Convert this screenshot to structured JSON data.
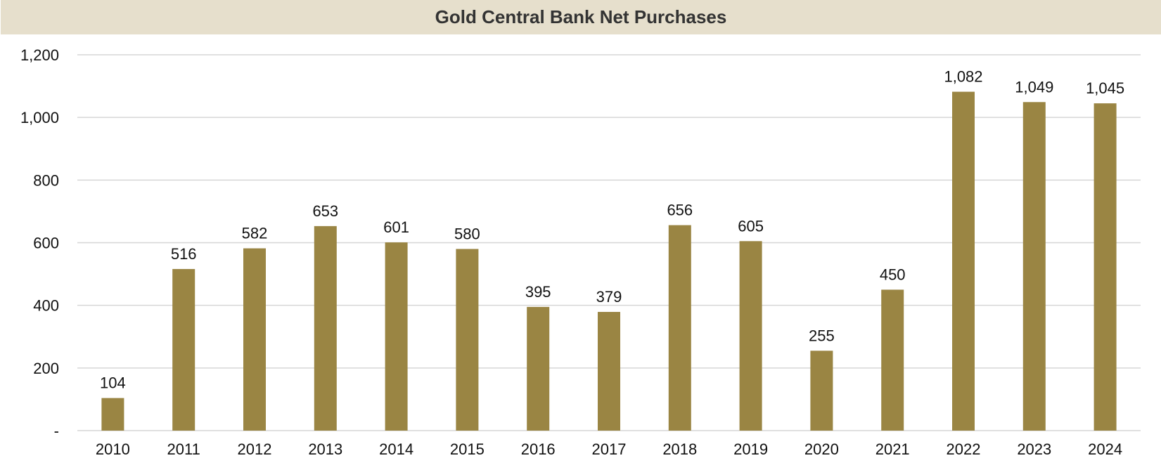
{
  "chart_data": {
    "type": "bar",
    "title": "Gold Central Bank Net Purchases",
    "xlabel": "",
    "ylabel": "",
    "categories": [
      "2010",
      "2011",
      "2012",
      "2013",
      "2014",
      "2015",
      "2016",
      "2017",
      "2018",
      "2019",
      "2020",
      "2021",
      "2022",
      "2023",
      "2024"
    ],
    "values": [
      104,
      516,
      582,
      653,
      601,
      580,
      395,
      379,
      656,
      605,
      255,
      450,
      1082,
      1049,
      1045
    ],
    "value_labels": [
      "104",
      "516",
      "582",
      "653",
      "601",
      "580",
      "395",
      "379",
      "656",
      "605",
      "255",
      "450",
      "1,082",
      "1,049",
      "1,045"
    ],
    "ylim": [
      0,
      1200
    ],
    "y_ticks": [
      0,
      200,
      400,
      600,
      800,
      1000,
      1200
    ],
    "y_tick_labels": [
      "-",
      "200",
      "400",
      "600",
      "800",
      "1,000",
      "1,200"
    ],
    "grid": true,
    "legend": "none",
    "colors": {
      "bar": "#9a8543",
      "grid": "#d6d6d6",
      "title_band": "#e6dfcc",
      "title_text": "#333333"
    }
  }
}
